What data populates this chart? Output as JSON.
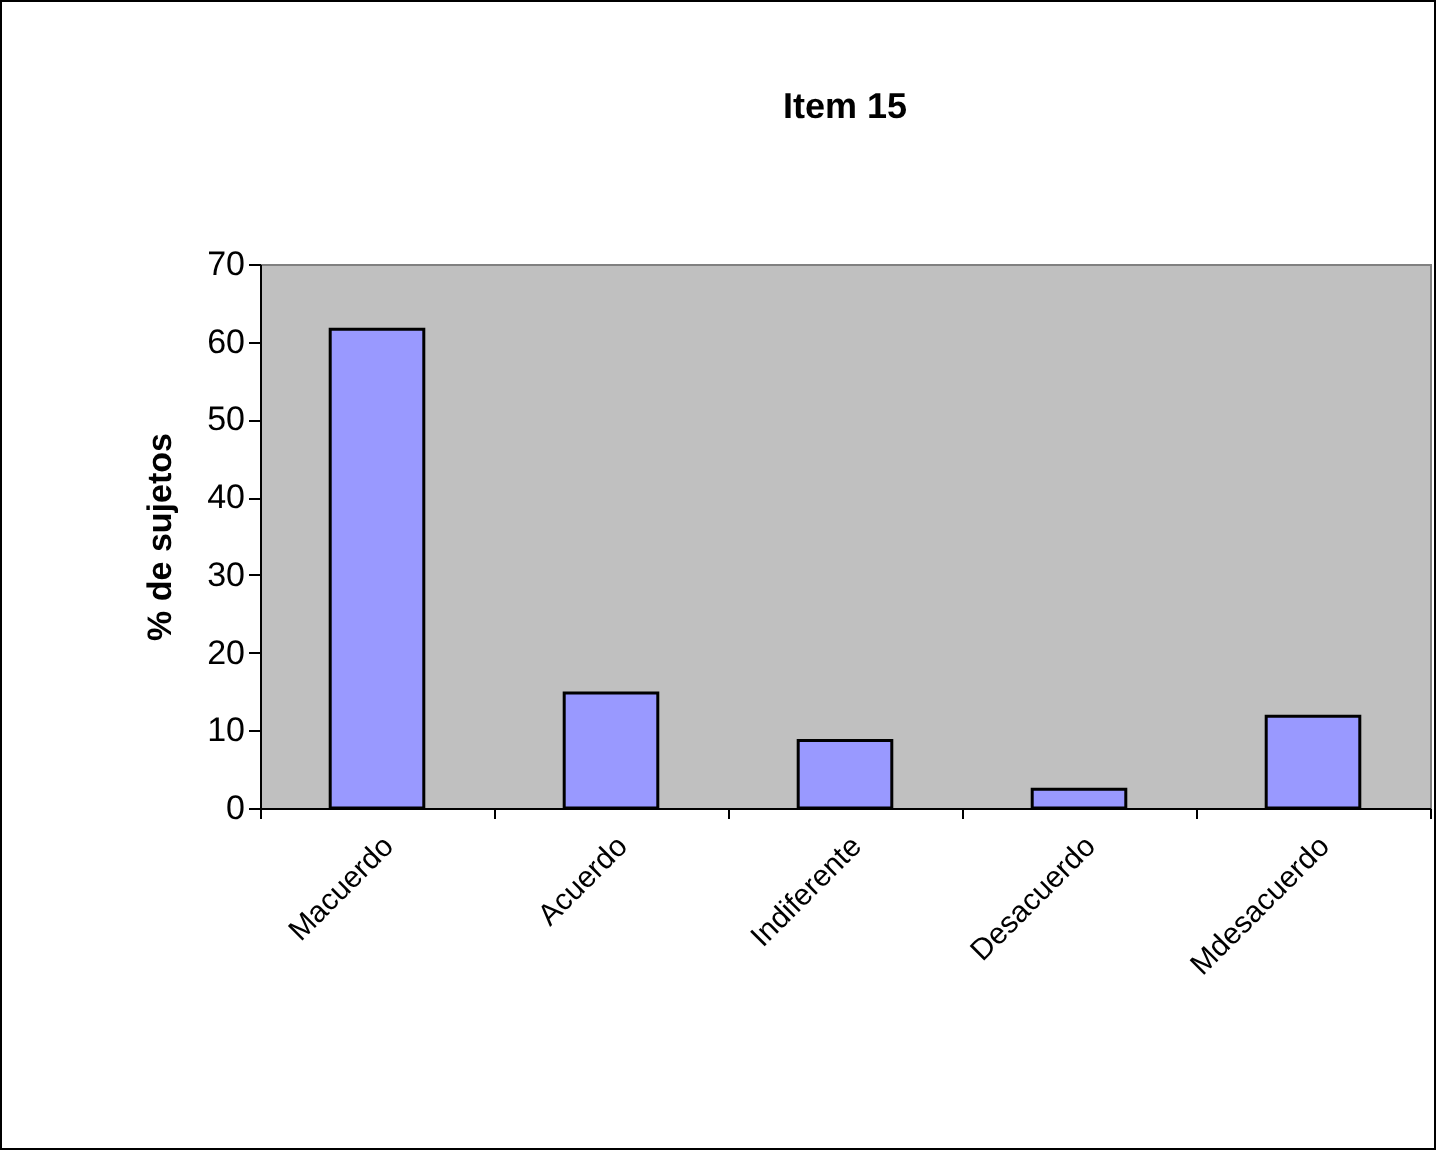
{
  "chart_data": {
    "type": "bar",
    "title": "Item 15",
    "ylabel": "% de sujetos",
    "categories": [
      "Macuerdo",
      "Acuerdo",
      "Indiferente",
      "Desacuerdo",
      "Mdesacuerdo"
    ],
    "values": [
      61.6,
      14.8,
      8.7,
      2.4,
      11.8
    ],
    "color": "#9999ff",
    "ylim": [
      0,
      70
    ],
    "yticks": [
      0,
      10,
      20,
      30,
      40,
      50,
      60,
      70
    ],
    "grid": false
  }
}
